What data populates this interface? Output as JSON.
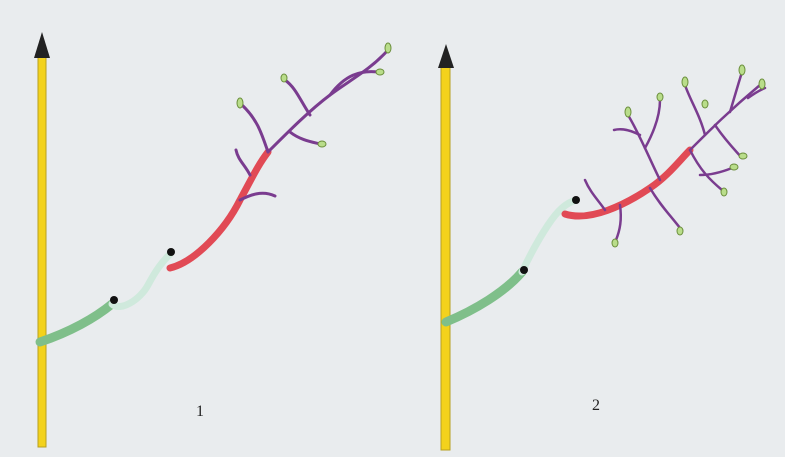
{
  "figures": [
    {
      "label": "1"
    },
    {
      "label": "2"
    }
  ]
}
